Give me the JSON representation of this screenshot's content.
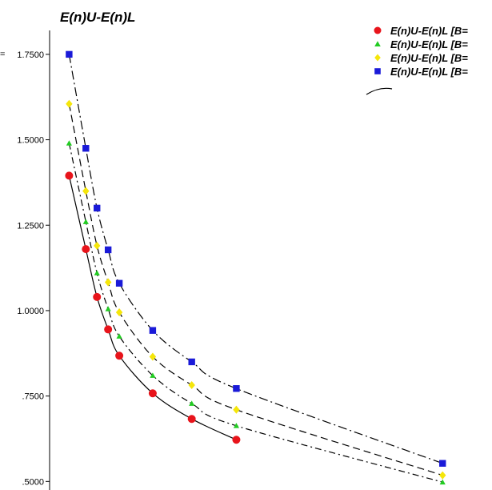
{
  "chart_data": {
    "type": "scatter",
    "title": "E(n)U-E(n)L",
    "y_tick_labels": [
      "1.7500",
      "1.5000",
      "1.2500",
      "1.0000",
      ".7500",
      ".5000"
    ],
    "y_ticks": [
      1.75,
      1.5,
      1.25,
      1.0,
      0.75,
      0.5
    ],
    "ylim": [
      0.475,
      1.82
    ],
    "xlim": [
      0.65,
      8.4
    ],
    "grid": false,
    "legend_position": "top-right",
    "axis_stub_label": "=",
    "series": [
      {
        "name": "E(n)U-E(n)L [B=",
        "marker": "circle",
        "color": "#e8141b",
        "line_style": "solid",
        "x": [
          1,
          1.3,
          1.5,
          1.7,
          1.9,
          2.5,
          3.2,
          4.0
        ],
        "y": [
          1.395,
          1.18,
          1.04,
          0.945,
          0.868,
          0.758,
          0.683,
          0.622
        ]
      },
      {
        "name": "E(n)U-E(n)L [B=",
        "marker": "triangle",
        "color": "#22cc22",
        "line_style": "dash-dot",
        "x": [
          1,
          1.3,
          1.5,
          1.7,
          1.9,
          2.5,
          3.2,
          4.0,
          7.7
        ],
        "y": [
          1.49,
          1.26,
          1.11,
          1.005,
          0.925,
          0.81,
          0.728,
          0.663,
          0.498
        ]
      },
      {
        "name": "E(n)U-E(n)L [B=",
        "marker": "diamond",
        "color": "#f5e60a",
        "line_style": "dashed",
        "x": [
          1,
          1.3,
          1.5,
          1.7,
          1.9,
          2.5,
          3.2,
          4.0,
          7.7
        ],
        "y": [
          1.605,
          1.35,
          1.19,
          1.083,
          0.995,
          0.865,
          0.782,
          0.71,
          0.518
        ]
      },
      {
        "name": "E(n)U-E(n)L [B=",
        "marker": "square",
        "color": "#1a1ad8",
        "line_style": "dash-dot-long",
        "x": [
          1,
          1.3,
          1.5,
          1.7,
          1.9,
          2.5,
          3.2,
          4.0,
          7.7
        ],
        "y": [
          1.75,
          1.475,
          1.3,
          1.178,
          1.08,
          0.942,
          0.85,
          0.772,
          0.553
        ]
      }
    ]
  }
}
